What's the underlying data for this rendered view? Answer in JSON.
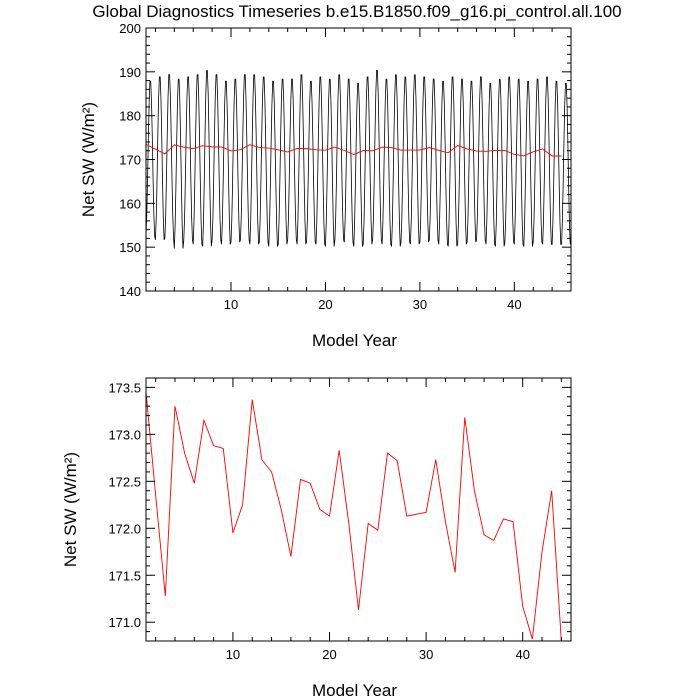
{
  "title": "Global Diagnostics Timeseries b.e15.B1850.f09_g16.pi_control.all.100",
  "chart_data": [
    {
      "type": "line",
      "xlabel": "Model Year",
      "ylabel": "Net SW (W/m²)",
      "xlim": [
        1,
        46
      ],
      "ylim": [
        140,
        200
      ],
      "xticks": [
        10,
        20,
        30,
        40
      ],
      "yticks": [
        140,
        150,
        160,
        170,
        180,
        190,
        200
      ],
      "series": [
        {
          "color": "#000000",
          "kind": "monthly",
          "annual_max": [
            188.5,
            189.5,
            190,
            189,
            189.5,
            190,
            191,
            190,
            188.5,
            189,
            190,
            190,
            189.5,
            188.5,
            189,
            189,
            190,
            188.5,
            189.5,
            189,
            190,
            189,
            188,
            189.5,
            191,
            189,
            190,
            189.5,
            190,
            189.5,
            189,
            188.5,
            189.5,
            189,
            188.5,
            189.5,
            188,
            189,
            189.5,
            189,
            188.5,
            189,
            189.5,
            188.5,
            188
          ],
          "annual_min": [
            152,
            151,
            151.5,
            149,
            151,
            150,
            149.5,
            151,
            150,
            150.5,
            151,
            150,
            150.5,
            149.5,
            150,
            151,
            150,
            150.5,
            150,
            149.5,
            151,
            150.5,
            149.5,
            150,
            151,
            150,
            149.5,
            150.5,
            150,
            150.5,
            151,
            150,
            149.5,
            150,
            150.5,
            151,
            150,
            149.5,
            150.5,
            150,
            149.5,
            150.5,
            150,
            150,
            150
          ]
        },
        {
          "color": "#ff0000",
          "kind": "annual",
          "x": [
            1,
            2,
            3,
            4,
            5,
            6,
            7,
            8,
            9,
            10,
            11,
            12,
            13,
            14,
            15,
            16,
            17,
            18,
            19,
            20,
            21,
            22,
            23,
            24,
            25,
            26,
            27,
            28,
            29,
            30,
            31,
            32,
            33,
            34,
            35,
            36,
            37,
            38,
            39,
            40,
            41,
            42,
            43,
            44,
            45
          ],
          "values": [
            173.45,
            172.35,
            171.28,
            173.3,
            172.8,
            172.48,
            173.15,
            172.88,
            172.85,
            171.95,
            172.25,
            173.37,
            172.73,
            172.6,
            172.2,
            171.7,
            172.52,
            172.48,
            172.2,
            172.13,
            172.83,
            172.05,
            171.13,
            172.05,
            171.98,
            172.8,
            172.72,
            172.13,
            172.15,
            172.17,
            172.73,
            172.07,
            171.53,
            173.18,
            172.4,
            171.93,
            171.87,
            172.1,
            172.07,
            171.17,
            170.82,
            171.75,
            172.4,
            170.8,
            170.8
          ]
        }
      ]
    },
    {
      "type": "line",
      "xlabel": "Model Year",
      "ylabel": "Net SW (W/m²)",
      "xlim": [
        1,
        45
      ],
      "ylim": [
        170.8,
        173.6
      ],
      "xticks": [
        10,
        20,
        30,
        40
      ],
      "yticks": [
        171.0,
        171.5,
        172.0,
        172.5,
        173.0,
        173.5
      ],
      "ytick_labels": [
        "171.0",
        "171.5",
        "172.0",
        "172.5",
        "173.0",
        "173.5"
      ],
      "series": [
        {
          "color": "#ff0000",
          "kind": "annual",
          "x": [
            1,
            2,
            3,
            4,
            5,
            6,
            7,
            8,
            9,
            10,
            11,
            12,
            13,
            14,
            15,
            16,
            17,
            18,
            19,
            20,
            21,
            22,
            23,
            24,
            25,
            26,
            27,
            28,
            29,
            30,
            31,
            32,
            33,
            34,
            35,
            36,
            37,
            38,
            39,
            40,
            41,
            42,
            43,
            44,
            45
          ],
          "values": [
            173.45,
            172.35,
            171.28,
            173.3,
            172.8,
            172.48,
            173.15,
            172.88,
            172.85,
            171.95,
            172.25,
            173.37,
            172.73,
            172.6,
            172.2,
            171.7,
            172.52,
            172.48,
            172.2,
            172.13,
            172.83,
            172.05,
            171.13,
            172.05,
            171.98,
            172.8,
            172.72,
            172.13,
            172.15,
            172.17,
            172.73,
            172.07,
            171.53,
            173.18,
            172.4,
            171.93,
            171.87,
            172.1,
            172.07,
            171.17,
            170.82,
            171.75,
            172.4,
            170.8,
            170.8
          ]
        }
      ]
    }
  ]
}
